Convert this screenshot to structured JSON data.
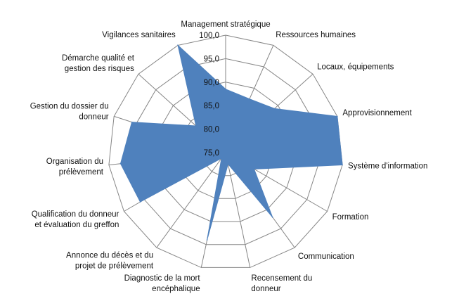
{
  "chart_data": {
    "type": "radar",
    "title": "",
    "categories": [
      "Management stratégique",
      "Ressources humaines",
      "Locaux, équipements",
      "Approvisionnement",
      "Système d'information",
      "Formation",
      "Communication",
      "Recensement du donneur",
      "Diagnostic de la mort encéphalique",
      "Annonce du décès et du projet de prélèvement",
      "Qualification du donneur et évaluation du greffon",
      "Organisation du prélèvement",
      "Gestion du dossier du donneur",
      "Démarche qualité et gestion des risques",
      "Vigilances sanitaires"
    ],
    "category_label_lines": [
      [
        "Management stratégique"
      ],
      [
        "Ressources humaines"
      ],
      [
        "Locaux, équipements"
      ],
      [
        "Approvisionnement"
      ],
      [
        "Système d'information"
      ],
      [
        "Formation"
      ],
      [
        "Communication"
      ],
      [
        "Recensement du",
        "donneur"
      ],
      [
        "Diagnostic de la mort",
        "encéphalique"
      ],
      [
        "Annonce du décès et du",
        "projet de prélèvement"
      ],
      [
        "Qualification du donneur",
        "et évaluation du greffon"
      ],
      [
        "Organisation du",
        "prélèvement"
      ],
      [
        "Gestion du dossier du",
        "donneur"
      ],
      [
        "Démarche qualité et",
        "gestion des risques"
      ],
      [
        "Vigilances sanitaires"
      ]
    ],
    "series": [
      {
        "values": [
          88.5,
          87.5,
          89.0,
          100.0,
          100.0,
          82.0,
          92.0,
          77.5,
          94.0,
          76.5,
          96.0,
          97.5,
          96.0,
          83.5,
          100.0
        ]
      }
    ],
    "rlim": [
      75,
      100
    ],
    "r_ticks": [
      "75,0",
      "80,0",
      "85,0",
      "90,0",
      "95,0",
      "100,0"
    ],
    "grid": true,
    "colors": {
      "fill": "#4F81BD",
      "grid": "#868686"
    }
  }
}
